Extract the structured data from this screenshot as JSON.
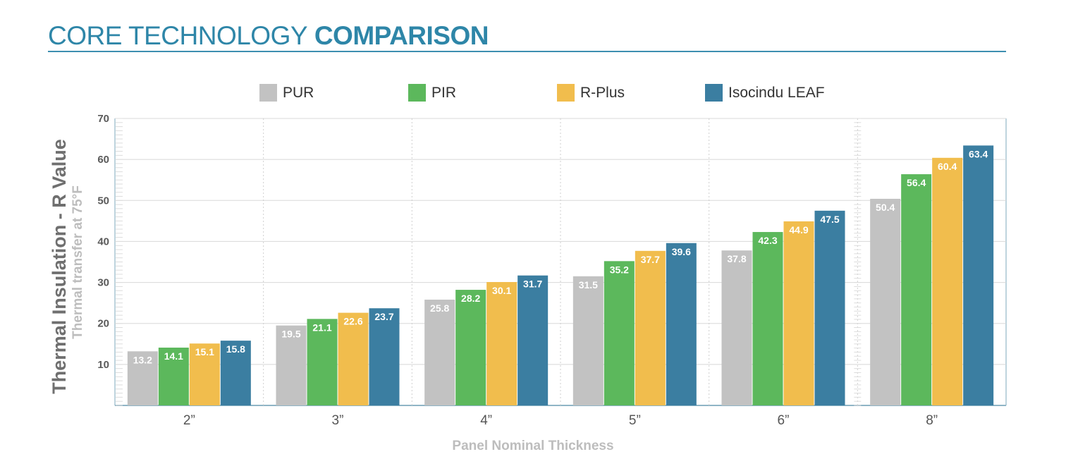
{
  "header": {
    "title_light": "CORE TECHNOLOGY",
    "title_bold": "COMPARISON"
  },
  "chart_data": {
    "type": "bar",
    "categories": [
      "2”",
      "3”",
      "4”",
      "5”",
      "6”",
      "8”"
    ],
    "series": [
      {
        "name": "PUR",
        "color": "#c2c2c2",
        "values": [
          13.2,
          19.5,
          25.8,
          31.5,
          37.8,
          50.4
        ]
      },
      {
        "name": "PIR",
        "color": "#5cb85c",
        "values": [
          14.1,
          21.1,
          28.2,
          35.2,
          42.3,
          56.4
        ]
      },
      {
        "name": "R-Plus",
        "color": "#f1bd4d",
        "values": [
          15.1,
          22.6,
          30.1,
          37.7,
          44.9,
          60.4
        ]
      },
      {
        "name": "Isocindu LEAF",
        "color": "#3b7ea1",
        "values": [
          15.8,
          23.7,
          31.7,
          39.6,
          47.5,
          63.4
        ]
      }
    ],
    "ylabel": "Thermal Insulation -  R Value",
    "ylabel_sub": "Thermal transfer at 75°F",
    "xlabel": "Panel Nominal Thickness",
    "ylim": [
      0,
      70
    ],
    "yticks": [
      10,
      20,
      30,
      40,
      50,
      60,
      70
    ],
    "grid": true,
    "legend_position": "top"
  }
}
